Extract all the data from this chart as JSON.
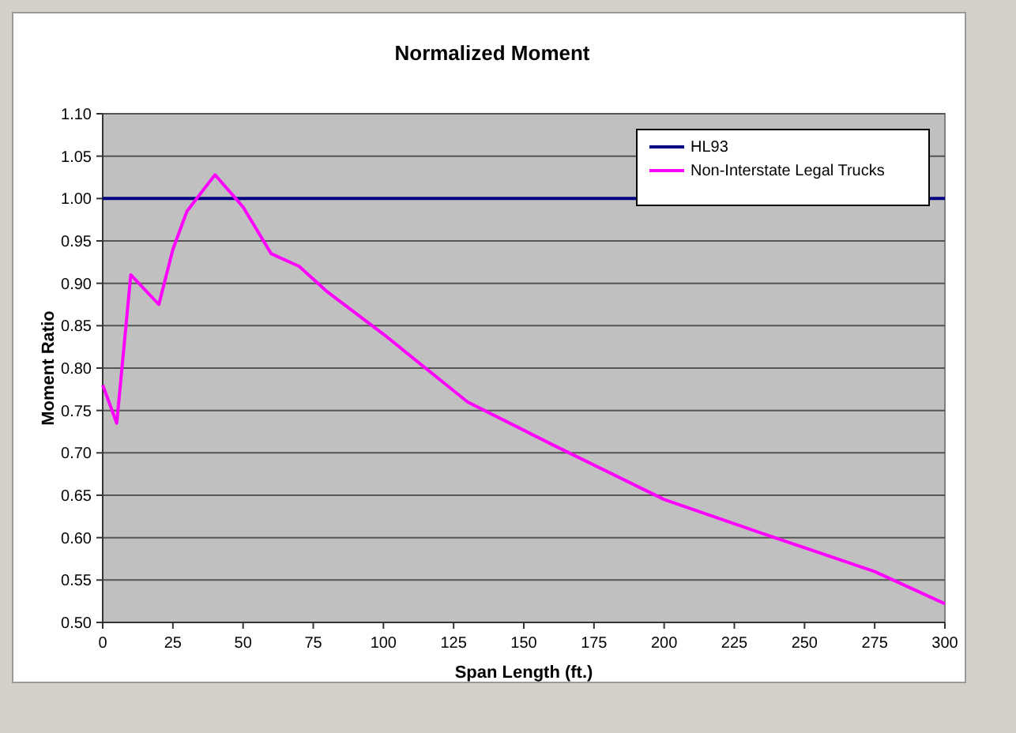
{
  "chart_data": {
    "type": "line",
    "title": "Normalized Moment",
    "xlabel": "Span Length (ft.)",
    "ylabel": "Moment Ratio",
    "xlim": [
      0,
      300
    ],
    "xticks": [
      0,
      25,
      50,
      75,
      100,
      125,
      150,
      175,
      200,
      225,
      250,
      275,
      300
    ],
    "ylim": [
      0.5,
      1.1
    ],
    "yticks": [
      {
        "value": 0.5,
        "label": "0.50"
      },
      {
        "value": 0.55,
        "label": "0.55"
      },
      {
        "value": 0.6,
        "label": "0.60"
      },
      {
        "value": 0.65,
        "label": "0.65"
      },
      {
        "value": 0.7,
        "label": "0.70"
      },
      {
        "value": 0.75,
        "label": "0.75"
      },
      {
        "value": 0.8,
        "label": "0.80"
      },
      {
        "value": 0.85,
        "label": "0.85"
      },
      {
        "value": 0.9,
        "label": "0.90"
      },
      {
        "value": 0.95,
        "label": "0.95"
      },
      {
        "value": 1.0,
        "label": "1.00"
      },
      {
        "value": 1.05,
        "label": "1.05"
      },
      {
        "value": 1.1,
        "label": "1.10"
      }
    ],
    "grid": "y",
    "legend": "top right",
    "marker": "none",
    "line_style": "solid",
    "series": [
      {
        "name": "HL93",
        "color": "#000080",
        "x": [
          0,
          300
        ],
        "values": [
          1.0,
          1.0
        ]
      },
      {
        "name": "Non-Interstate Legal Trucks",
        "color": "#ff00ff",
        "x": [
          0,
          5,
          10,
          20,
          25,
          30,
          40,
          50,
          60,
          70,
          80,
          100,
          130,
          160,
          200,
          235,
          275,
          300
        ],
        "values": [
          0.78,
          0.735,
          0.91,
          0.875,
          0.94,
          0.985,
          1.028,
          0.99,
          0.935,
          0.92,
          0.89,
          0.84,
          0.76,
          0.71,
          0.645,
          0.605,
          0.56,
          0.522
        ]
      }
    ]
  }
}
